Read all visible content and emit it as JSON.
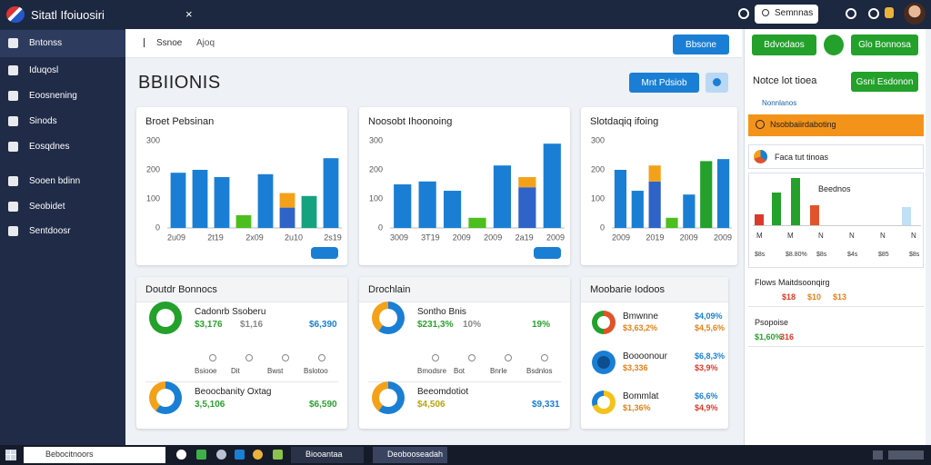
{
  "app": {
    "title": "Sitatl Ifoiuosiri",
    "close": "×",
    "search": "Semnnas"
  },
  "sidebar": {
    "items": [
      "Bntonss",
      "Iduqosl",
      "Eoosnening",
      "Sinods",
      "Eosqdnes",
      "Sooen bdinn",
      "Seobidet",
      "Sentdoosr"
    ]
  },
  "tabs": [
    "Ssnoe",
    "Ajoq"
  ],
  "top_button": "Bbsone",
  "heading": "BBIIONIS",
  "action_button": "Mnt Pdsiob",
  "charts": [
    {
      "title": "Broet Pebsinan",
      "ylim": [
        0,
        300
      ],
      "yticks": [
        0,
        100,
        200,
        300
      ],
      "x_labels": [
        "2u09",
        "2t19",
        "2x09",
        "2u10",
        "2s19"
      ],
      "bars": [
        {
          "values": [
            190
          ],
          "colors": [
            "#1a7fd4"
          ]
        },
        {
          "values": [
            200
          ],
          "colors": [
            "#1a7fd4"
          ]
        },
        {
          "values": [
            175
          ],
          "colors": [
            "#1a7fd4"
          ]
        },
        {
          "values": [
            44
          ],
          "colors": [
            "#4cbf1e"
          ]
        },
        {
          "values": [
            185
          ],
          "colors": [
            "#1a7fd4"
          ]
        },
        {
          "values": [
            70,
            50
          ],
          "colors": [
            "#2f63c7",
            "#f4a11a"
          ]
        },
        {
          "values": [
            110
          ],
          "colors": [
            "#15a37f"
          ]
        },
        {
          "values": [
            240
          ],
          "colors": [
            "#1a7fd4"
          ]
        }
      ]
    },
    {
      "title": "Noosobt Ihoonoing",
      "ylim": [
        0,
        300
      ],
      "yticks": [
        0,
        100,
        200,
        300
      ],
      "x_labels": [
        "3009",
        "3T19",
        "2009",
        "2009",
        "2a19",
        "2009"
      ],
      "bars": [
        {
          "values": [
            150
          ],
          "colors": [
            "#1a7fd4"
          ]
        },
        {
          "values": [
            160
          ],
          "colors": [
            "#1a7fd4"
          ]
        },
        {
          "values": [
            128
          ],
          "colors": [
            "#1a7fd4"
          ]
        },
        {
          "values": [
            35
          ],
          "colors": [
            "#4cbf1e"
          ]
        },
        {
          "values": [
            215
          ],
          "colors": [
            "#1a7fd4"
          ]
        },
        {
          "values": [
            140,
            35
          ],
          "colors": [
            "#2f63c7",
            "#f4a11a"
          ]
        },
        {
          "values": [
            290
          ],
          "colors": [
            "#1a7fd4"
          ]
        }
      ]
    },
    {
      "title": "Slotdaqiq ifoing",
      "ylim": [
        0,
        300
      ],
      "yticks": [
        0,
        100,
        200,
        300
      ],
      "x_labels": [
        "2009",
        "2019",
        "2009",
        "2009"
      ],
      "bars": [
        {
          "values": [
            200
          ],
          "colors": [
            "#1a7fd4"
          ]
        },
        {
          "values": [
            128
          ],
          "colors": [
            "#1a7fd4"
          ]
        },
        {
          "values": [
            160,
            55
          ],
          "colors": [
            "#2f63c7",
            "#f4a11a"
          ]
        },
        {
          "values": [
            35
          ],
          "colors": [
            "#4cbf1e"
          ]
        },
        {
          "values": [
            115
          ],
          "colors": [
            "#1a7fd4"
          ]
        },
        {
          "values": [
            230
          ],
          "colors": [
            "#23a12b"
          ]
        },
        {
          "values": [
            237
          ],
          "colors": [
            "#1a7fd4"
          ]
        }
      ]
    }
  ],
  "cards": [
    {
      "title": "Doutdr Bonnocs",
      "items": [
        {
          "label": "Cadonrb Ssoberu",
          "values": [
            "$3,176",
            "$1,16",
            "$6,390"
          ],
          "colors": [
            "#2aa12e",
            "#888888",
            "#1a7fd4"
          ],
          "subs": [
            "Bsiooe",
            "Dit",
            "Bwst",
            "Bslotoo"
          ]
        },
        {
          "label": "Beoocbanity Oxtag",
          "values": [
            "3,5,106",
            "$6,590"
          ],
          "colors": [
            "#2aa12e",
            "#2aa12e"
          ],
          "subs": []
        }
      ]
    },
    {
      "title": "Drochlain",
      "items": [
        {
          "label": "Sontho Bnis",
          "values": [
            "$231,3%",
            "10%",
            "19%"
          ],
          "colors": [
            "#2aa12e",
            "#888888",
            "#2aa12e"
          ],
          "subs": [
            "Bmodsre",
            "Bot",
            "Bnrle",
            "Bsdnlos"
          ]
        },
        {
          "label": "Beeomdotiot",
          "values": [
            "$4,506",
            "$9,331"
          ],
          "colors": [
            "#b7a40f",
            "#1a7fd4"
          ],
          "subs": []
        }
      ]
    },
    {
      "title": "Moobarie Iodoos",
      "items": [
        {
          "label": "Bmwnne",
          "values": [
            "$4,09%",
            "$3,63,2%",
            "$4,5,6%"
          ],
          "colors": [
            "#1a7fd4",
            "#e0821a",
            "#e0821a"
          ],
          "subs": []
        },
        {
          "label": "Boooonour",
          "values": [
            "$6,8,3%",
            "$3,336",
            "$3,9%"
          ],
          "colors": [
            "#1a7fd4",
            "#e0821a",
            "#d93a2a"
          ],
          "subs": []
        },
        {
          "label": "Bommlat",
          "values": [
            "$6,6%",
            "$1,36%",
            "$4,9%"
          ],
          "colors": [
            "#1a7fd4",
            "#e0821a",
            "#d93a2a"
          ],
          "subs": []
        }
      ]
    }
  ],
  "right": {
    "buttons": [
      "Bdvodaos",
      "Glo Bonnosa"
    ],
    "heading": "Notce lot tioea",
    "heading_button": "Gsni Esdonon",
    "small": "Nonnlanos",
    "orange_bar": "Nsobbaiirdaboting",
    "dropdown": "Faca tut tinoas",
    "chart": {
      "label": "Beednos",
      "values": [
        12,
        36,
        52,
        22,
        20
      ],
      "colors": [
        "#d93a2a",
        "#23a12b",
        "#23a12b",
        "#e0532a",
        "#bfe0f5"
      ],
      "x_labels": [
        "M",
        "M",
        "N",
        "N",
        "N",
        "N"
      ],
      "sub_labels": [
        "$8s",
        "$8.80%",
        "$8s",
        "$4s",
        "$85",
        "$8s"
      ]
    },
    "rows": [
      {
        "label": "Flows Maitdsoonqirg",
        "values": [
          "$18",
          "$10",
          "$13"
        ],
        "colors": [
          "#d93a2a",
          "#e0821a",
          "#e0821a"
        ]
      },
      {
        "label": "Psopoise",
        "values": [
          "$1,60%",
          "316"
        ],
        "colors": [
          "#2aa12e",
          "#d93a2a"
        ]
      }
    ]
  },
  "taskbar": {
    "search": "Bebocitnoors",
    "apps": [
      "Biooantaa",
      "Deobooseadah"
    ]
  }
}
